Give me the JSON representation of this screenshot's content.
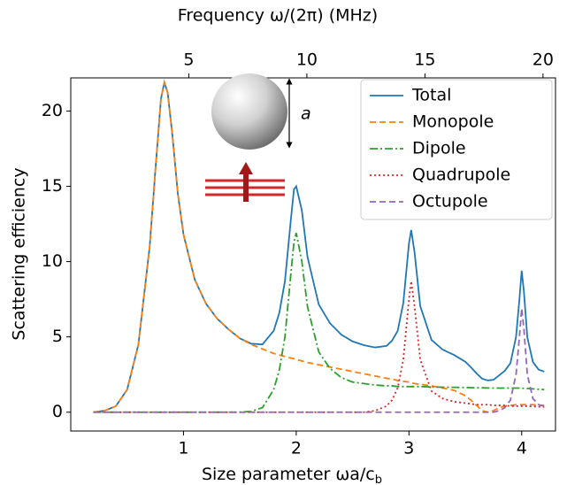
{
  "chart_data": {
    "type": "line",
    "xlabel": "Size parameter ωa/c",
    "xlabel_subscript": "b",
    "x2label": "Frequency ω/(2π) (MHz)",
    "ylabel": "Scattering efficiency",
    "inset_label": "a",
    "x": [
      0.2,
      0.3,
      0.4,
      0.5,
      0.6,
      0.7,
      0.75,
      0.8,
      0.83,
      0.86,
      0.9,
      0.95,
      1.0,
      1.1,
      1.2,
      1.3,
      1.4,
      1.5,
      1.6,
      1.7,
      1.8,
      1.85,
      1.9,
      1.95,
      1.98,
      2.0,
      2.05,
      2.1,
      2.2,
      2.3,
      2.4,
      2.5,
      2.6,
      2.7,
      2.8,
      2.85,
      2.9,
      2.95,
      3.0,
      3.02,
      3.05,
      3.1,
      3.2,
      3.3,
      3.4,
      3.5,
      3.55,
      3.6,
      3.65,
      3.7,
      3.75,
      3.8,
      3.85,
      3.9,
      3.95,
      3.98,
      4.0,
      4.02,
      4.05,
      4.1,
      4.15,
      4.2
    ],
    "series": [
      {
        "name": "Total",
        "color": "#1f77b4",
        "linestyle": "solid",
        "values": [
          0,
          0.1,
          0.4,
          1.5,
          4.5,
          11,
          16,
          20.8,
          21.9,
          21.2,
          18.5,
          14.5,
          11.8,
          8.8,
          7.2,
          6.2,
          5.5,
          4.9,
          4.55,
          4.5,
          5.4,
          6.6,
          8.7,
          12.6,
          14.8,
          15.0,
          13.4,
          10.3,
          7.15,
          5.9,
          5.15,
          4.7,
          4.45,
          4.3,
          4.4,
          4.75,
          5.4,
          7.25,
          11.2,
          12.1,
          10.6,
          7.05,
          4.8,
          4.15,
          3.8,
          3.35,
          2.98,
          2.57,
          2.22,
          2.11,
          2.15,
          2.45,
          2.75,
          3.25,
          5.0,
          7.5,
          9.4,
          7.98,
          4.97,
          3.33,
          2.83,
          2.7
        ]
      },
      {
        "name": "Monopole",
        "color": "#ff7f0e",
        "linestyle": "dashed",
        "values": [
          0,
          0.1,
          0.4,
          1.5,
          4.5,
          11,
          16,
          20.8,
          21.9,
          21.2,
          18.5,
          14.5,
          11.8,
          8.8,
          7.2,
          6.2,
          5.5,
          4.9,
          4.5,
          4.2,
          3.9,
          3.8,
          3.7,
          3.6,
          3.55,
          3.5,
          3.4,
          3.3,
          3.15,
          3.0,
          2.85,
          2.7,
          2.55,
          2.4,
          2.25,
          2.2,
          2.1,
          2.05,
          2.0,
          1.95,
          1.9,
          1.85,
          1.75,
          1.6,
          1.45,
          1.1,
          0.8,
          0.45,
          0.1,
          0,
          0.1,
          0.3,
          0.4,
          0.45,
          0.5,
          0.5,
          0.5,
          0.5,
          0.5,
          0.5,
          0.45,
          0.45
        ]
      },
      {
        "name": "Dipole",
        "color": "#2ca02c",
        "linestyle": "dashdot",
        "values": [
          0,
          0,
          0,
          0,
          0,
          0,
          0,
          0,
          0,
          0,
          0,
          0,
          0,
          0,
          0,
          0,
          0,
          0,
          0.05,
          0.3,
          1.5,
          2.8,
          5,
          9,
          11.3,
          11.9,
          10,
          7,
          4,
          2.9,
          2.3,
          2.0,
          1.9,
          1.8,
          1.75,
          1.75,
          1.7,
          1.7,
          1.7,
          1.7,
          1.7,
          1.7,
          1.68,
          1.66,
          1.65,
          1.64,
          1.63,
          1.62,
          1.62,
          1.61,
          1.6,
          1.6,
          1.6,
          1.6,
          1.6,
          1.6,
          1.6,
          1.58,
          1.57,
          1.55,
          1.52,
          1.5
        ]
      },
      {
        "name": "Quadrupole",
        "color": "#d62728",
        "linestyle": "dotted",
        "values": [
          0,
          0,
          0,
          0,
          0,
          0,
          0,
          0,
          0,
          0,
          0,
          0,
          0,
          0,
          0,
          0,
          0,
          0,
          0,
          0,
          0,
          0,
          0,
          0,
          0,
          0,
          0,
          0,
          0,
          0,
          0,
          0,
          0,
          0.1,
          0.4,
          0.8,
          1.6,
          3.5,
          7.5,
          8.7,
          7,
          3.5,
          1.4,
          0.9,
          0.7,
          0.6,
          0.55,
          0.5,
          0.5,
          0.5,
          0.45,
          0.45,
          0.45,
          0.4,
          0.4,
          0.4,
          0.4,
          0.4,
          0.4,
          0.38,
          0.36,
          0.35
        ]
      },
      {
        "name": "Octupole",
        "color": "#9467bd",
        "linestyle": "dashed",
        "values": [
          0,
          0,
          0,
          0,
          0,
          0,
          0,
          0,
          0,
          0,
          0,
          0,
          0,
          0,
          0,
          0,
          0,
          0,
          0,
          0,
          0,
          0,
          0,
          0,
          0,
          0,
          0,
          0,
          0,
          0,
          0,
          0,
          0,
          0,
          0,
          0,
          0,
          0,
          0,
          0,
          0,
          0,
          0,
          0,
          0,
          0,
          0,
          0,
          0,
          0,
          0,
          0.1,
          0.3,
          0.8,
          2.5,
          5,
          6.9,
          5.5,
          2.5,
          0.9,
          0.5,
          0.4
        ]
      }
    ],
    "xlim": [
      0,
      4.3
    ],
    "xticks": [
      1,
      2,
      3,
      4
    ],
    "x2lim": [
      0,
      20.53
    ],
    "x2ticks": [
      5,
      10,
      15,
      20
    ],
    "ylim": [
      -1.25,
      22.2
    ],
    "yticks": [
      0,
      5,
      10,
      15,
      20
    ],
    "grid": false,
    "legend": "upper right"
  }
}
